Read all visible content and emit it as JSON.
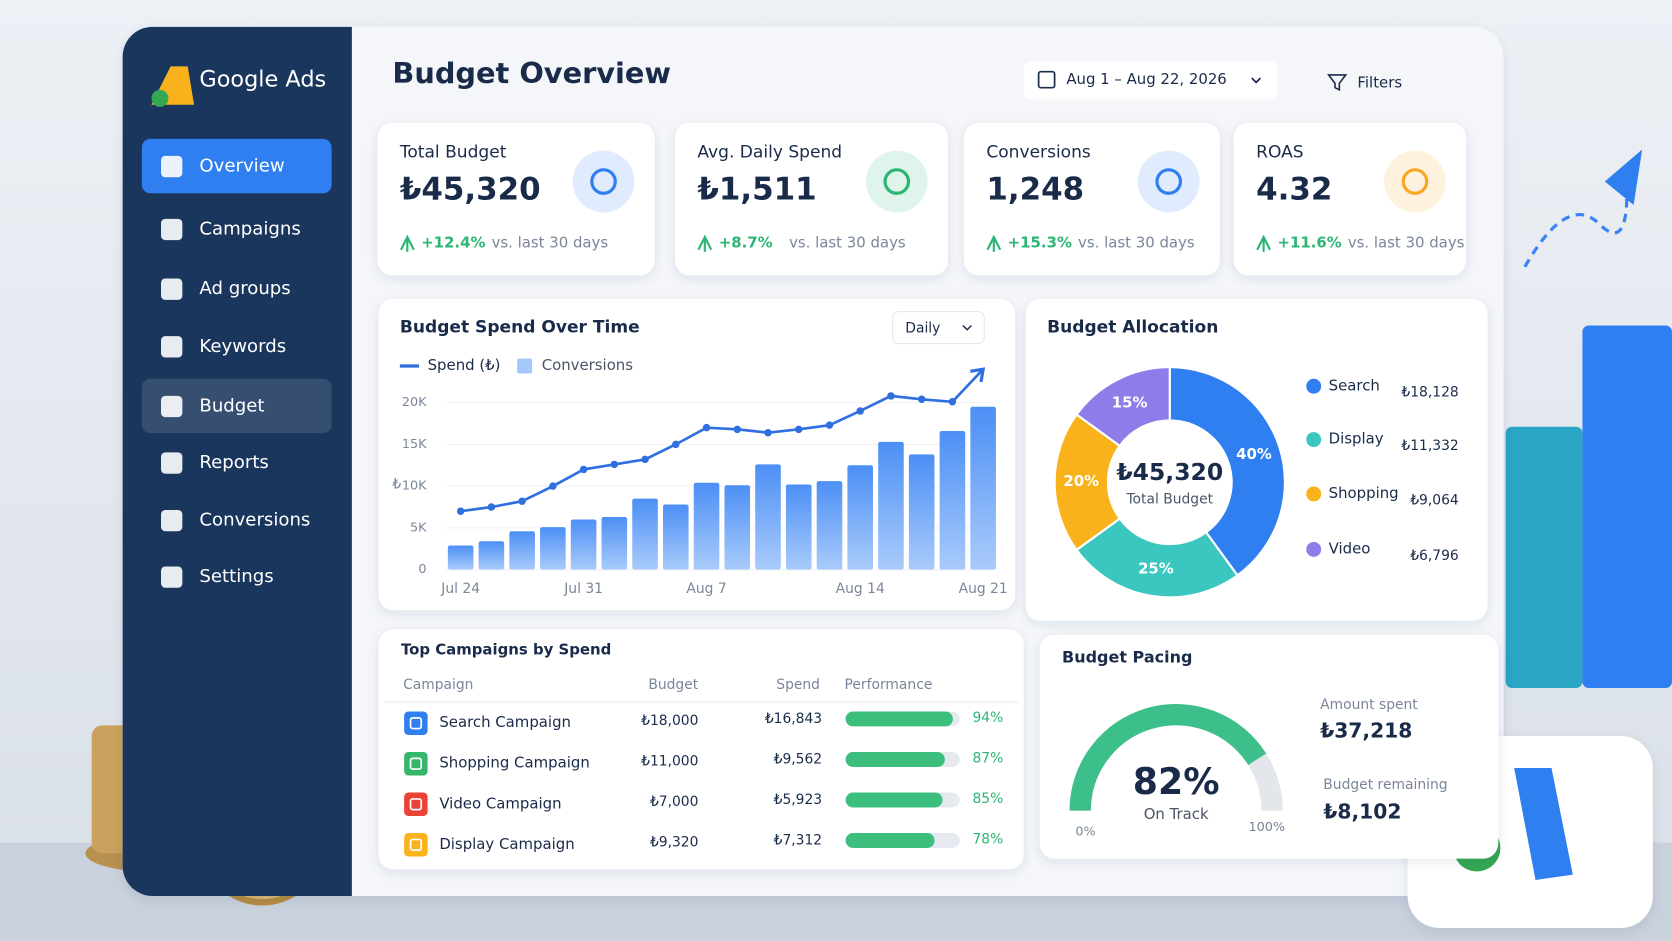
{
  "sidebar": {
    "brand": "Google Ads",
    "nav": [
      "Overview",
      "Campaigns",
      "Ad groups",
      "Keywords",
      "Budget",
      "Reports",
      "Conversions",
      "Settings"
    ]
  },
  "header": {
    "title": "Budget Overview",
    "date_range": "Aug 1 – Aug 22, 2026",
    "filters": "Filters"
  },
  "kpis": [
    {
      "label": "Total Budget",
      "value": "₺45,320",
      "change": "+12.4%",
      "note": "vs. last 30 days",
      "color": "#2f7ff0"
    },
    {
      "label": "Avg. Daily Spend",
      "value": "₺1,511",
      "change": "+8.7%",
      "note": "vs. last 30 days",
      "color": "#2bb673"
    },
    {
      "label": "Conversions",
      "value": "1,248",
      "change": "+15.3%",
      "note": "vs. last 30 days",
      "color": "#2f7ff0"
    },
    {
      "label": "ROAS",
      "value": "4.32",
      "change": "+11.6%",
      "note": "vs. last 30 days",
      "color": "#f5a623"
    }
  ],
  "spend_chart": {
    "type": "bar-line",
    "title": "Budget Spend Over Time",
    "control": "Daily",
    "y_label": "₺",
    "categories": [
      "Jul 24",
      null,
      null,
      null,
      "Jul 31",
      null,
      null,
      null,
      "Aug 7",
      null,
      null,
      null,
      null,
      "Aug 14",
      null,
      null,
      null,
      "Aug 21"
    ],
    "ylim": [
      0,
      24000
    ],
    "yticks": [
      0,
      {
        "value": 5000,
        "label": "5K"
      },
      {
        "value": 10000,
        "label": "10K"
      },
      {
        "value": 15000,
        "label": "15K"
      },
      {
        "value": 20000,
        "label": "20K"
      }
    ],
    "series": [
      {
        "name": "Spend (₺)",
        "type": "line",
        "color": "#2f6fe0",
        "values": [
          7000,
          7500,
          8200,
          10000,
          12000,
          12600,
          13200,
          15000,
          17000,
          16800,
          16400,
          16800,
          17300,
          19000,
          20800,
          20400,
          20100,
          24000
        ]
      },
      {
        "name": "Conversions",
        "type": "bar",
        "color": "#4c8ff5",
        "values": [
          2900,
          3400,
          4600,
          5100,
          6000,
          6300,
          8500,
          7800,
          10400,
          10100,
          12600,
          10200,
          10600,
          12500,
          15300,
          13800,
          16600,
          19500
        ]
      }
    ]
  },
  "allocation": {
    "type": "donut",
    "title": "Budget Allocation",
    "center_value": "₺45,320",
    "center_label": "Total Budget",
    "categories": [
      "Search",
      "Display",
      "Shopping",
      "Video"
    ],
    "values": [
      40,
      25,
      20,
      15
    ],
    "value_labels": [
      "40%",
      "25%",
      "20%",
      "15%"
    ],
    "amounts": [
      "₺18,128",
      "₺11,332",
      "₺9,064",
      "₺6,796"
    ],
    "colors": [
      "#2f7ff0",
      "#3cc6c0",
      "#f9b21b",
      "#8f7ce8"
    ]
  },
  "campaigns": {
    "title": "Top Campaigns by Spend",
    "columns": [
      "Campaign",
      "Budget",
      "Spend",
      "Performance"
    ],
    "rows": [
      {
        "name": "Search Campaign",
        "budget": "₺18,000",
        "spend": "₺16,843",
        "performance": 94,
        "performance_label": "94%",
        "color": "#2f7ff0"
      },
      {
        "name": "Shopping Campaign",
        "budget": "₺11,000",
        "spend": "₺9,562",
        "performance": 87,
        "performance_label": "87%",
        "color": "#34b76a"
      },
      {
        "name": "Video Campaign",
        "budget": "₺7,000",
        "spend": "₺5,923",
        "performance": 85,
        "performance_label": "85%",
        "color": "#ea4335"
      },
      {
        "name": "Display Campaign",
        "budget": "₺9,320",
        "spend": "₺7,312",
        "performance": 78,
        "performance_label": "78%",
        "color": "#f9b21b"
      }
    ]
  },
  "pacing": {
    "title": "Budget Pacing",
    "value": 82,
    "value_label": "82%",
    "status": "On Track",
    "range": [
      {
        "value": 0,
        "label": "0%"
      },
      {
        "value": 100,
        "label": "100%"
      }
    ],
    "amount_spent_label": "Amount spent",
    "amount_spent": "₺37,218",
    "remaining_label": "Budget remaining",
    "remaining": "₺8,102"
  }
}
